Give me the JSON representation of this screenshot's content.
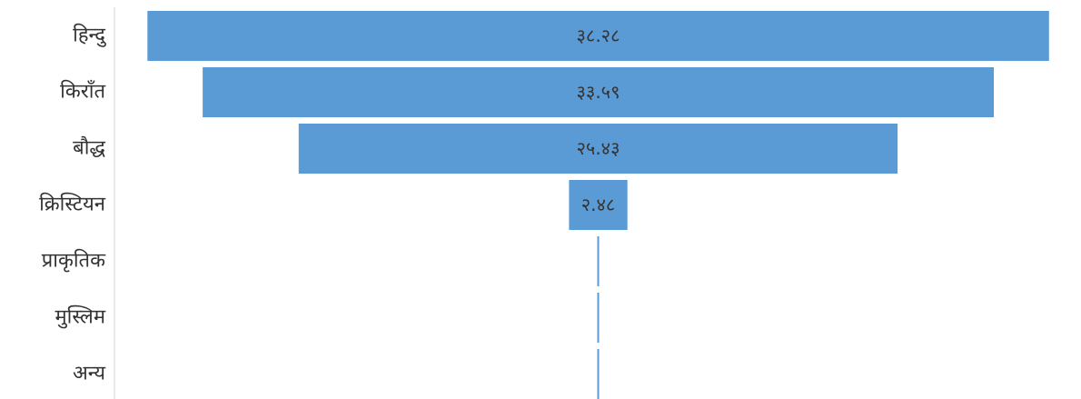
{
  "chart_data": {
    "type": "bar",
    "orientation": "horizontal-funnel",
    "categories": [
      "हिन्दु",
      "किराँत",
      "बौद्ध",
      "क्रिस्टियन",
      "प्राकृतिक",
      "मुस्लिम",
      "अन्य"
    ],
    "values": [
      38.28,
      33.59,
      25.43,
      2.48,
      0.06,
      0.05,
      0.06
    ],
    "data_labels": [
      "३८.२८",
      "३३.५९",
      "२५.४३",
      "२.४८",
      "",
      "",
      ""
    ],
    "xlim": [
      0,
      41
    ],
    "color": "#5B9BD5",
    "grid": false,
    "legend": "none"
  }
}
